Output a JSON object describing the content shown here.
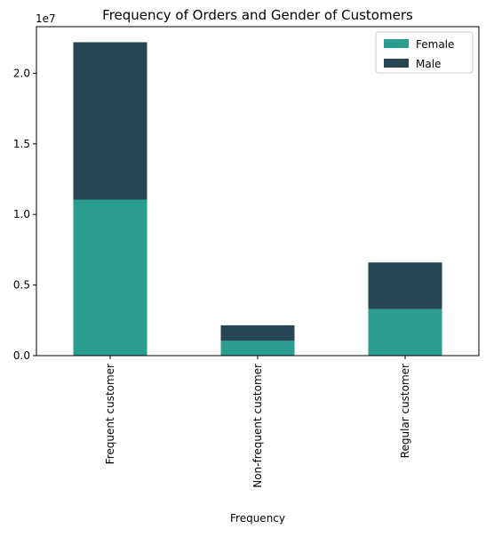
{
  "chart_data": {
    "type": "bar",
    "stacked": true,
    "title": "Frequency of Orders and Gender of Customers",
    "xlabel": "Frequency",
    "ylabel": "",
    "y_offset_label": "1e7",
    "y_multiplier": 10000000,
    "categories": [
      "Frequent customer",
      "Non-frequent customer",
      "Regular customer"
    ],
    "series": [
      {
        "name": "Female",
        "color": "#2a9d8f",
        "values": [
          11050000,
          1050000,
          3300000
        ]
      },
      {
        "name": "Male",
        "color": "#264653",
        "values": [
          11150000,
          1100000,
          3300000
        ]
      }
    ],
    "ylim": [
      0,
      23300000
    ],
    "yticks": [
      0,
      5000000,
      10000000,
      15000000,
      20000000
    ],
    "ytick_labels": [
      "0.0",
      "0.5",
      "1.0",
      "1.5",
      "2.0"
    ],
    "grid": false,
    "legend_position": "top-right"
  }
}
